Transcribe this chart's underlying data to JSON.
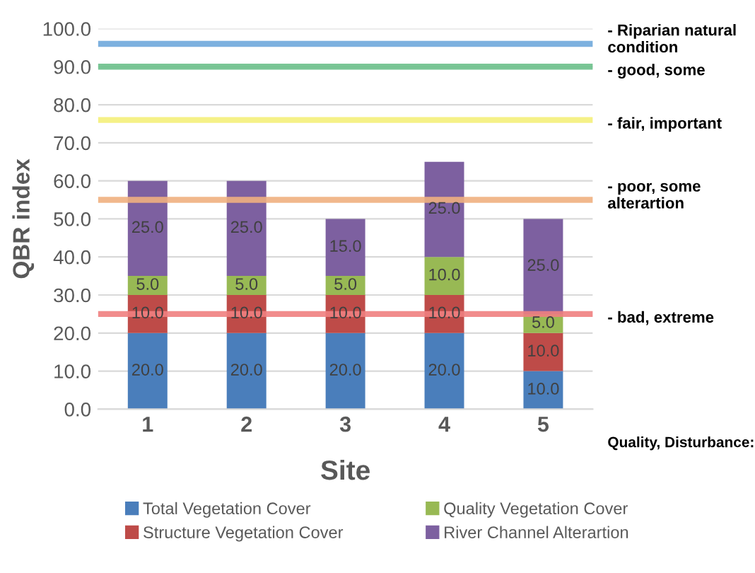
{
  "chart_data": {
    "type": "bar",
    "stacked": true,
    "xlabel": "Site",
    "ylabel": "QBR index",
    "categories": [
      "1",
      "2",
      "3",
      "4",
      "5"
    ],
    "series": [
      {
        "name": "Total Vegetation Cover",
        "color": "#4a7ebb",
        "values": [
          20.0,
          20.0,
          20.0,
          20.0,
          10.0
        ],
        "value_labels": [
          "20.0",
          "20.0",
          "20.0",
          "20.0",
          "10.0"
        ]
      },
      {
        "name": "Structure Vegetation Cover",
        "color": "#be4b48",
        "values": [
          10.0,
          10.0,
          10.0,
          10.0,
          10.0
        ],
        "value_labels": [
          "10.0",
          "10.0",
          "10.0",
          "10.0",
          "10.0"
        ]
      },
      {
        "name": "Quality Vegetation Cover",
        "color": "#98b954",
        "values": [
          5.0,
          5.0,
          5.0,
          10.0,
          5.0
        ],
        "value_labels": [
          "5.0",
          "5.0",
          "5.0",
          "10.0",
          "5.0"
        ]
      },
      {
        "name": "River Channel Alterartion",
        "color": "#7d60a0",
        "values": [
          25.0,
          25.0,
          15.0,
          25.0,
          25.0
        ],
        "value_labels": [
          "25.0",
          "25.0",
          "15.0",
          "25.0",
          "25.0"
        ]
      }
    ],
    "ylim": [
      0,
      100
    ],
    "yticks": [
      {
        "value": 0,
        "label": "0.0"
      },
      {
        "value": 10,
        "label": "10.0"
      },
      {
        "value": 20,
        "label": "20.0"
      },
      {
        "value": 30,
        "label": "30.0"
      },
      {
        "value": 40,
        "label": "40.0"
      },
      {
        "value": 50,
        "label": "50.0"
      },
      {
        "value": 60,
        "label": "60.0"
      },
      {
        "value": 70,
        "label": "70.0"
      },
      {
        "value": 80,
        "label": "80.0"
      },
      {
        "value": 90,
        "label": "90.0"
      },
      {
        "value": 100,
        "label": "100.0"
      }
    ],
    "grid": "y",
    "legend": "bottom",
    "ref_lines": [
      {
        "axis": "y",
        "value": 96,
        "label": "- Riparian natural condition",
        "color": "#6fa8dc"
      },
      {
        "axis": "y",
        "value": 90,
        "label": "- good, some",
        "color": "#6cc08b"
      },
      {
        "axis": "y",
        "value": 76,
        "label": "- fair, important",
        "color": "#f4f07a"
      },
      {
        "axis": "y",
        "value": 55,
        "label": "- poor, some alterartion",
        "color": "#f0b080"
      },
      {
        "axis": "y",
        "value": 25,
        "label": "- bad, extreme",
        "color": "#f08080"
      }
    ],
    "annotations": [
      "Quality, Disturbance:"
    ]
  }
}
